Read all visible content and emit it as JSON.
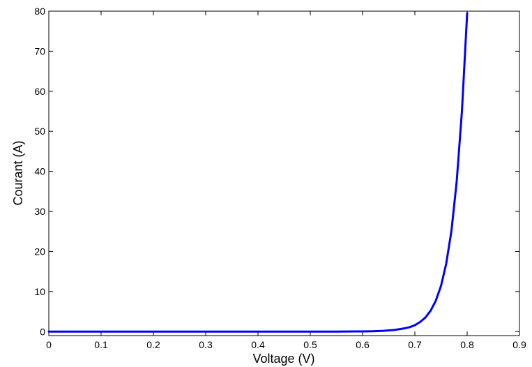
{
  "chart_data": {
    "type": "line",
    "title": "",
    "xlabel": "Voltage (V)",
    "ylabel": "Courant (A)",
    "xlim": [
      0,
      0.9
    ],
    "ylim": [
      -1,
      80
    ],
    "x_ticks": [
      0,
      0.1,
      0.2,
      0.3,
      0.4,
      0.5,
      0.6,
      0.7,
      0.8,
      0.9
    ],
    "x_tick_labels": [
      "0",
      "0.1",
      "0.2",
      "0.3",
      "0.4",
      "0.5",
      "0.6",
      "0.7",
      "0.8",
      "0.9"
    ],
    "y_ticks": [
      0,
      10,
      20,
      30,
      40,
      50,
      60,
      70,
      80
    ],
    "y_tick_labels": [
      "0",
      "10",
      "20",
      "30",
      "40",
      "50",
      "60",
      "70",
      "80"
    ],
    "grid": false,
    "legend": "none",
    "series": [
      {
        "color": "#0000ff",
        "x": [
          0,
          0.1,
          0.2,
          0.3,
          0.4,
          0.5,
          0.55,
          0.6,
          0.62,
          0.64,
          0.66,
          0.68,
          0.69,
          0.7,
          0.71,
          0.72,
          0.73,
          0.74,
          0.75,
          0.76,
          0.77,
          0.78,
          0.79,
          0.8
        ],
        "y": [
          0,
          0,
          0,
          0,
          0,
          0,
          0.01,
          0.05,
          0.1,
          0.2,
          0.4,
          0.8,
          1.1,
          1.6,
          2.4,
          3.5,
          5.2,
          7.7,
          11.4,
          17.0,
          25.2,
          37.5,
          55.0,
          79.5
        ]
      }
    ]
  }
}
